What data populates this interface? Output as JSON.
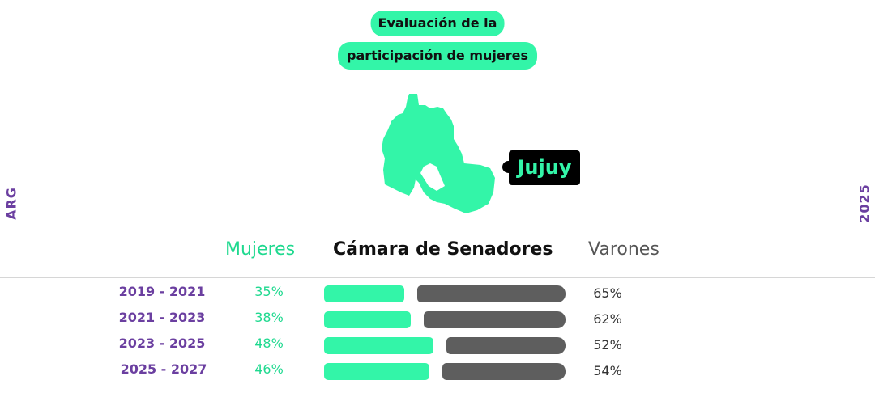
{
  "title": {
    "line1": "Evaluación de la",
    "line2": "participación de mujeres"
  },
  "side_left": "ARG",
  "side_right": "2025",
  "region": {
    "name": "Jujuy",
    "map_icon": "jujuy-province-map-icon"
  },
  "legend": {
    "women": "Mujeres",
    "chamber": "Cámara de Senadores",
    "men": "Varones"
  },
  "colors": {
    "women": "#33f5a8",
    "men": "#5e5e5e",
    "accent": "#6b3fa0"
  },
  "chart_data": {
    "type": "bar",
    "stacked": true,
    "orientation": "horizontal",
    "title": "Cámara de Senadores",
    "categories": [
      "2019 - 2021",
      "2021 - 2023",
      "2023 - 2025",
      "2025 - 2027"
    ],
    "series": [
      {
        "name": "Mujeres",
        "values": [
          35,
          38,
          48,
          46
        ],
        "labels": [
          "35%",
          "38%",
          "48%",
          "46%"
        ]
      },
      {
        "name": "Varones",
        "values": [
          65,
          62,
          52,
          54
        ],
        "labels": [
          "65%",
          "62%",
          "52%",
          "54%"
        ]
      }
    ],
    "xlim": [
      0,
      100
    ],
    "legend": "top"
  }
}
